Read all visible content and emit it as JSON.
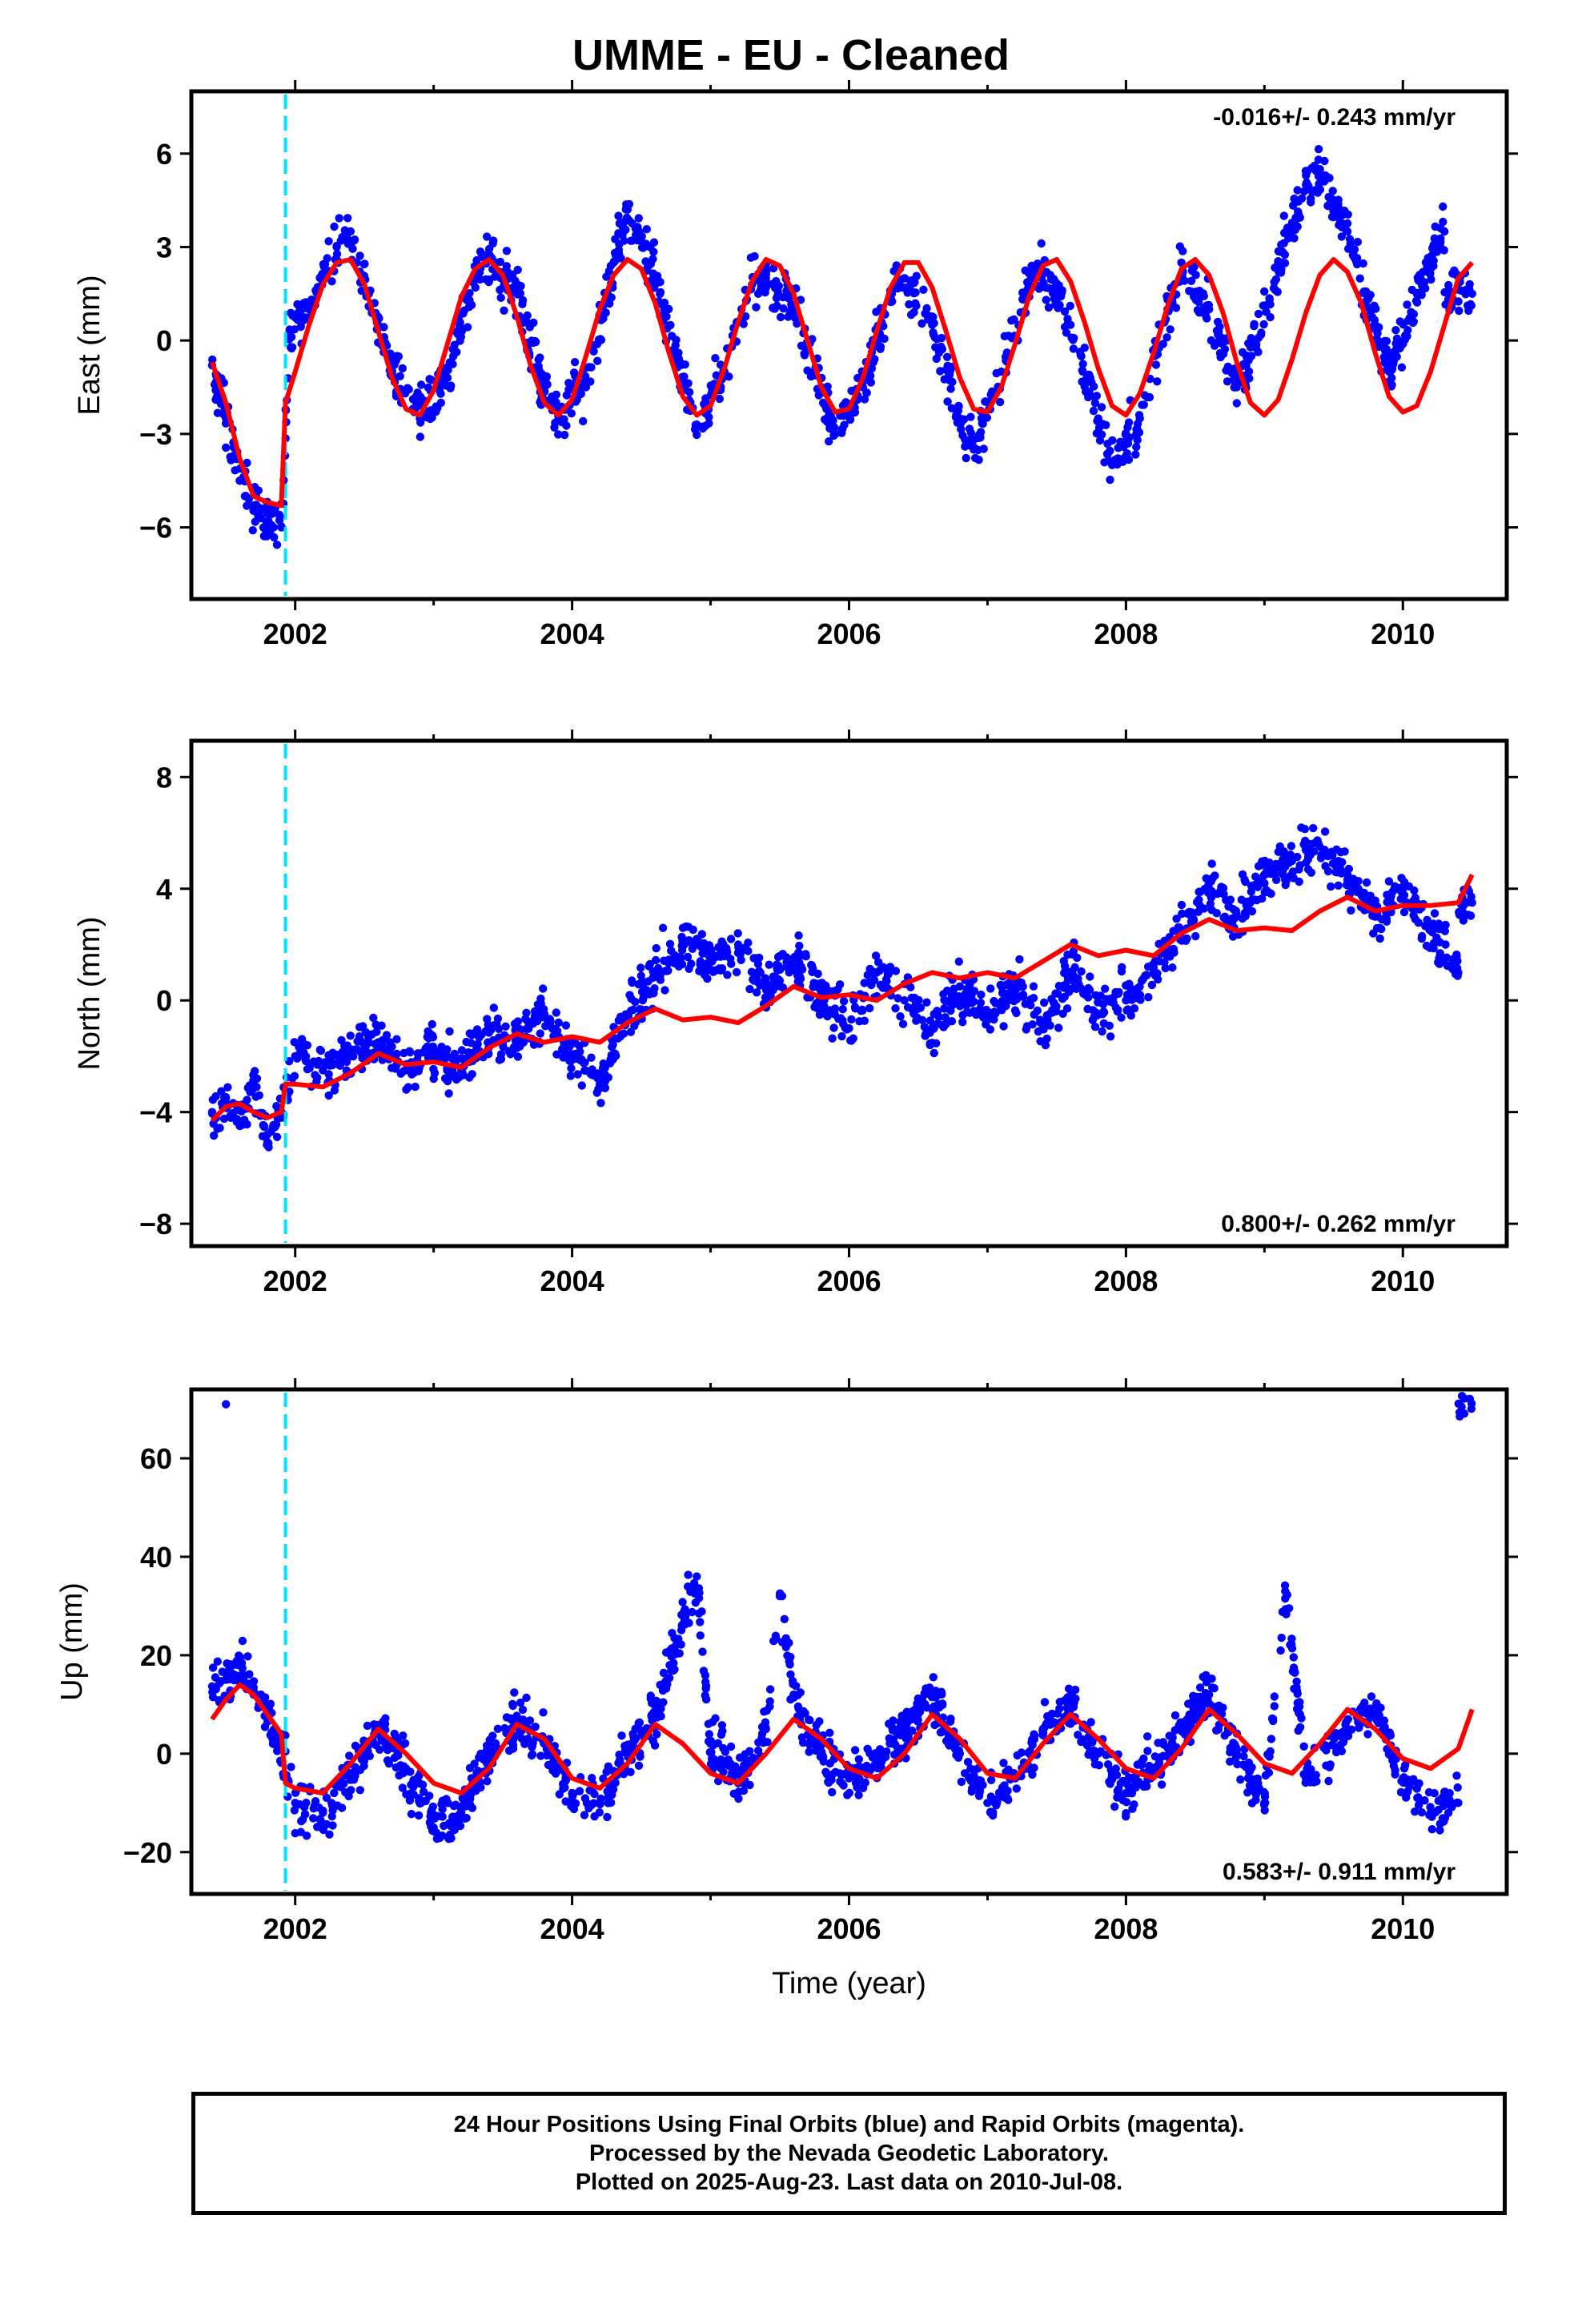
{
  "title": "UMME  - EU - Cleaned",
  "colors": {
    "data_points": "#0000ff",
    "model_line": "#ff0000",
    "event_line": "#00e5ff",
    "axes": "#000000"
  },
  "chart_data": [
    {
      "type": "scatter",
      "component": "east",
      "ylabel": "East (mm)",
      "xlim": [
        2001.25,
        2010.75
      ],
      "ylim": [
        -8.3,
        8.0
      ],
      "x_ticks": [
        2002,
        2004,
        2006,
        2008,
        2010
      ],
      "x_tick_labels": [
        "2002",
        "2004",
        "2006",
        "2008",
        "2010"
      ],
      "y_ticks": [
        -6,
        -3,
        0,
        3,
        6
      ],
      "y_tick_labels": [
        "−6",
        "−3",
        "0",
        "3",
        "6"
      ],
      "rate_text": "-0.016+/- 0.243 mm/yr",
      "event_line_x": 2001.93,
      "series": [
        {
          "role": "data",
          "x": [
            2001.4,
            2001.5,
            2001.6,
            2001.7,
            2001.8,
            2001.9,
            2001.96,
            2002.1,
            2002.3,
            2002.4,
            2002.5,
            2002.7,
            2002.9,
            2003.1,
            2003.3,
            2003.4,
            2003.6,
            2003.8,
            2003.9,
            2004.1,
            2004.3,
            2004.4,
            2004.6,
            2004.8,
            2004.9,
            2005.1,
            2005.3,
            2005.4,
            2005.6,
            2005.8,
            2005.9,
            2006.1,
            2006.3,
            2006.4,
            2006.6,
            2006.8,
            2006.9,
            2007.1,
            2007.3,
            2007.4,
            2007.6,
            2007.8,
            2007.9,
            2008.1,
            2008.3,
            2008.4,
            2008.6,
            2008.8,
            2008.9,
            2009.1,
            2009.3,
            2009.4,
            2009.6,
            2009.8,
            2009.9,
            2010.1,
            2010.3,
            2010.5
          ],
          "y": [
            -0.8,
            -2.5,
            -4.5,
            -5.3,
            -5.8,
            -6.0,
            0.3,
            1.0,
            3.0,
            3.5,
            2.0,
            -1.0,
            -2.5,
            -1.2,
            2.0,
            2.6,
            1.5,
            -1.5,
            -2.4,
            -1.5,
            2.5,
            4.2,
            2.0,
            -1.2,
            -2.7,
            -1.0,
            1.8,
            2.0,
            1.0,
            -1.5,
            -3.0,
            -1.5,
            1.5,
            2.0,
            0.5,
            -2.5,
            -3.5,
            -1.0,
            1.8,
            2.2,
            0.5,
            -2.5,
            -4.0,
            -2.5,
            1.0,
            2.5,
            1.0,
            -1.5,
            -0.5,
            2.5,
            5.0,
            5.5,
            3.5,
            0.5,
            -1.0,
            1.5,
            3.5,
            1.5
          ]
        },
        {
          "role": "model",
          "x": [
            2001.4,
            2001.5,
            2001.6,
            2001.7,
            2001.8,
            2001.9,
            2001.93,
            2002.0,
            2002.1,
            2002.2,
            2002.3,
            2002.4,
            2002.5,
            2002.6,
            2002.7,
            2002.8,
            2002.9,
            2003.0,
            2003.1,
            2003.2,
            2003.3,
            2003.4,
            2003.5,
            2003.6,
            2003.7,
            2003.8,
            2003.9,
            2004.0,
            2004.1,
            2004.2,
            2004.3,
            2004.4,
            2004.5,
            2004.6,
            2004.7,
            2004.8,
            2004.9,
            2005.0,
            2005.1,
            2005.2,
            2005.3,
            2005.4,
            2005.5,
            2005.6,
            2005.7,
            2005.8,
            2005.9,
            2006.0,
            2006.1,
            2006.2,
            2006.3,
            2006.4,
            2006.5,
            2006.6,
            2006.7,
            2006.8,
            2006.9,
            2007.0,
            2007.1,
            2007.2,
            2007.3,
            2007.4,
            2007.5,
            2007.6,
            2007.7,
            2007.8,
            2007.9,
            2008.0,
            2008.1,
            2008.2,
            2008.3,
            2008.4,
            2008.5,
            2008.6,
            2008.7,
            2008.8,
            2008.9,
            2009.0,
            2009.1,
            2009.2,
            2009.3,
            2009.4,
            2009.5,
            2009.6,
            2009.7,
            2009.8,
            2009.9,
            2010.0,
            2010.1,
            2010.2,
            2010.3,
            2010.4,
            2010.5
          ],
          "y": [
            -0.7,
            -2.0,
            -3.8,
            -5.0,
            -5.2,
            -5.3,
            -2.0,
            -1.0,
            0.5,
            1.8,
            2.5,
            2.6,
            1.8,
            0.3,
            -1.2,
            -2.2,
            -2.4,
            -1.6,
            -0.1,
            1.4,
            2.3,
            2.6,
            2.1,
            0.8,
            -0.8,
            -2.0,
            -2.4,
            -1.9,
            -0.5,
            1.0,
            2.1,
            2.6,
            2.3,
            1.2,
            -0.4,
            -1.8,
            -2.4,
            -2.1,
            -0.9,
            0.6,
            1.9,
            2.6,
            2.4,
            1.5,
            0.0,
            -1.5,
            -2.3,
            -2.2,
            -1.2,
            0.3,
            1.7,
            2.5,
            2.5,
            1.7,
            0.3,
            -1.2,
            -2.2,
            -2.3,
            -1.5,
            -0.1,
            1.4,
            2.4,
            2.6,
            1.9,
            0.6,
            -0.9,
            -2.1,
            -2.4,
            -1.7,
            -0.4,
            1.1,
            2.3,
            2.6,
            2.1,
            0.9,
            -0.7,
            -2.0,
            -2.4,
            -1.9,
            -0.6,
            0.9,
            2.1,
            2.6,
            2.2,
            1.2,
            -0.4,
            -1.8,
            -2.3,
            -2.1,
            -1.0,
            0.5,
            2.0,
            2.5
          ]
        }
      ]
    },
    {
      "type": "scatter",
      "component": "north",
      "ylabel": "North (mm)",
      "xlim": [
        2001.25,
        2010.75
      ],
      "ylim": [
        -8.8,
        9.3
      ],
      "x_ticks": [
        2002,
        2004,
        2006,
        2008,
        2010
      ],
      "x_tick_labels": [
        "2002",
        "2004",
        "2006",
        "2008",
        "2010"
      ],
      "y_ticks": [
        -8,
        -4,
        0,
        4,
        8
      ],
      "y_tick_labels": [
        "−8",
        "−4",
        "0",
        "4",
        "8"
      ],
      "rate_text": "0.800+/- 0.262 mm/yr",
      "event_line_x": 2001.93,
      "series": [
        {
          "role": "data",
          "x": [
            2001.4,
            2001.5,
            2001.6,
            2001.7,
            2001.8,
            2001.9,
            2002.0,
            2002.2,
            2002.4,
            2002.6,
            2002.8,
            2003.0,
            2003.2,
            2003.4,
            2003.6,
            2003.8,
            2004.0,
            2004.2,
            2004.4,
            2004.6,
            2004.8,
            2005.0,
            2005.2,
            2005.4,
            2005.6,
            2005.8,
            2006.0,
            2006.2,
            2006.4,
            2006.6,
            2006.8,
            2007.0,
            2007.2,
            2007.4,
            2007.6,
            2007.8,
            2008.0,
            2008.2,
            2008.4,
            2008.6,
            2008.8,
            2009.0,
            2009.2,
            2009.4,
            2009.6,
            2009.8,
            2010.0,
            2010.2,
            2010.4,
            2010.5
          ],
          "y": [
            -4.0,
            -3.5,
            -4.5,
            -3.0,
            -4.8,
            -4.0,
            -2.0,
            -2.5,
            -2.0,
            -1.5,
            -2.5,
            -1.8,
            -2.5,
            -1.0,
            -1.5,
            -0.5,
            -2.0,
            -3.0,
            -0.5,
            1.0,
            2.0,
            1.5,
            2.0,
            0.5,
            1.5,
            0.0,
            -1.0,
            1.0,
            0.0,
            -1.0,
            0.5,
            -0.5,
            0.5,
            -1.0,
            1.0,
            -0.5,
            0.0,
            1.0,
            2.5,
            4.0,
            3.0,
            4.5,
            5.0,
            5.5,
            4.5,
            3.0,
            4.0,
            2.5,
            1.0,
            3.5
          ]
        },
        {
          "role": "model",
          "x": [
            2001.4,
            2001.5,
            2001.6,
            2001.7,
            2001.8,
            2001.9,
            2001.93,
            2002.0,
            2002.2,
            2002.4,
            2002.6,
            2002.8,
            2003.0,
            2003.2,
            2003.4,
            2003.6,
            2003.8,
            2004.0,
            2004.2,
            2004.4,
            2004.6,
            2004.8,
            2005.0,
            2005.2,
            2005.4,
            2005.6,
            2005.8,
            2006.0,
            2006.2,
            2006.4,
            2006.6,
            2006.8,
            2007.0,
            2007.2,
            2007.4,
            2007.6,
            2007.8,
            2008.0,
            2008.2,
            2008.4,
            2008.6,
            2008.8,
            2009.0,
            2009.2,
            2009.4,
            2009.6,
            2009.8,
            2010.0,
            2010.2,
            2010.4,
            2010.5
          ],
          "y": [
            -4.3,
            -3.8,
            -3.7,
            -4.0,
            -4.2,
            -4.0,
            -3.0,
            -3.0,
            -3.1,
            -2.6,
            -1.9,
            -2.3,
            -2.2,
            -2.4,
            -1.7,
            -1.2,
            -1.5,
            -1.3,
            -1.5,
            -0.8,
            -0.3,
            -0.7,
            -0.6,
            -0.8,
            -0.2,
            0.5,
            0.1,
            0.2,
            0.0,
            0.6,
            1.0,
            0.8,
            1.0,
            0.8,
            1.4,
            2.0,
            1.6,
            1.8,
            1.6,
            2.4,
            2.9,
            2.5,
            2.6,
            2.5,
            3.2,
            3.7,
            3.2,
            3.4,
            3.4,
            3.5,
            4.5
          ]
        }
      ]
    },
    {
      "type": "scatter",
      "component": "up",
      "ylabel": "Up (mm)",
      "xlim": [
        2001.25,
        2010.75
      ],
      "ylim": [
        -28.5,
        74
      ],
      "x_ticks": [
        2002,
        2004,
        2006,
        2008,
        2010
      ],
      "x_tick_labels": [
        "2002",
        "2004",
        "2006",
        "2008",
        "2010"
      ],
      "y_ticks": [
        -20,
        0,
        20,
        40,
        60
      ],
      "y_tick_labels": [
        "−20",
        "0",
        "20",
        "40",
        "60"
      ],
      "rate_text": "0.583+/- 0.911 mm/yr",
      "event_line_x": 2001.93,
      "xlabel": "Time (year)",
      "series": [
        {
          "role": "data",
          "x": [
            2001.5,
            2001.6,
            2001.7,
            2001.8,
            2002.0,
            2002.2,
            2002.4,
            2002.6,
            2002.8,
            2003.0,
            2003.2,
            2003.4,
            2003.6,
            2003.8,
            2004.0,
            2004.2,
            2004.4,
            2004.6,
            2004.9,
            2005.0,
            2005.2,
            2005.4,
            2005.5,
            2005.6,
            2005.8,
            2006.0,
            2006.2,
            2006.4,
            2006.6,
            2006.8,
            2007.0,
            2007.2,
            2007.4,
            2007.6,
            2007.8,
            2008.0,
            2008.2,
            2008.4,
            2008.6,
            2008.8,
            2009.0,
            2009.15,
            2009.3,
            2009.6,
            2009.8,
            2010.0,
            2010.2,
            2010.4,
            2001.5
          ],
          "y": [
            15,
            18,
            12,
            8,
            -10,
            -12,
            -5,
            5,
            -3,
            -15,
            -12,
            0,
            7,
            2,
            -8,
            -10,
            0,
            8,
            36,
            2,
            -6,
            5,
            32,
            12,
            0,
            -5,
            -2,
            5,
            12,
            0,
            -10,
            -5,
            5,
            10,
            0,
            -8,
            -3,
            5,
            12,
            0,
            -10,
            33,
            -5,
            5,
            8,
            -5,
            -12,
            -10,
            71
          ]
        },
        {
          "role": "model",
          "x": [
            2001.4,
            2001.5,
            2001.6,
            2001.7,
            2001.8,
            2001.9,
            2001.93,
            2002.0,
            2002.2,
            2002.4,
            2002.6,
            2002.8,
            2003.0,
            2003.2,
            2003.4,
            2003.6,
            2003.8,
            2004.0,
            2004.2,
            2004.4,
            2004.6,
            2004.8,
            2005.0,
            2005.2,
            2005.4,
            2005.6,
            2005.8,
            2006.0,
            2006.2,
            2006.4,
            2006.6,
            2006.8,
            2007.0,
            2007.2,
            2007.4,
            2007.6,
            2007.8,
            2008.0,
            2008.2,
            2008.4,
            2008.6,
            2008.8,
            2009.0,
            2009.2,
            2009.4,
            2009.6,
            2009.8,
            2010.0,
            2010.2,
            2010.4,
            2010.5
          ],
          "y": [
            7,
            11,
            14,
            12,
            8,
            4,
            -6,
            -7,
            -8,
            -2,
            5,
            0,
            -6,
            -8,
            -3,
            6,
            3,
            -5,
            -7,
            -2,
            6,
            2,
            -4,
            -6,
            0,
            7,
            3,
            -3,
            -5,
            0,
            8,
            3,
            -4,
            -5,
            2,
            8,
            3,
            -3,
            -5,
            1,
            9,
            4,
            -2,
            -4,
            2,
            9,
            5,
            -1,
            -3,
            1,
            9
          ]
        }
      ]
    }
  ],
  "caption": {
    "line1": "24 Hour Positions Using Final Orbits (blue) and Rapid Orbits (magenta).",
    "line2": "Processed by the Nevada Geodetic Laboratory.",
    "line3": "Plotted on 2025-Aug-23. Last data on 2010-Jul-08."
  }
}
